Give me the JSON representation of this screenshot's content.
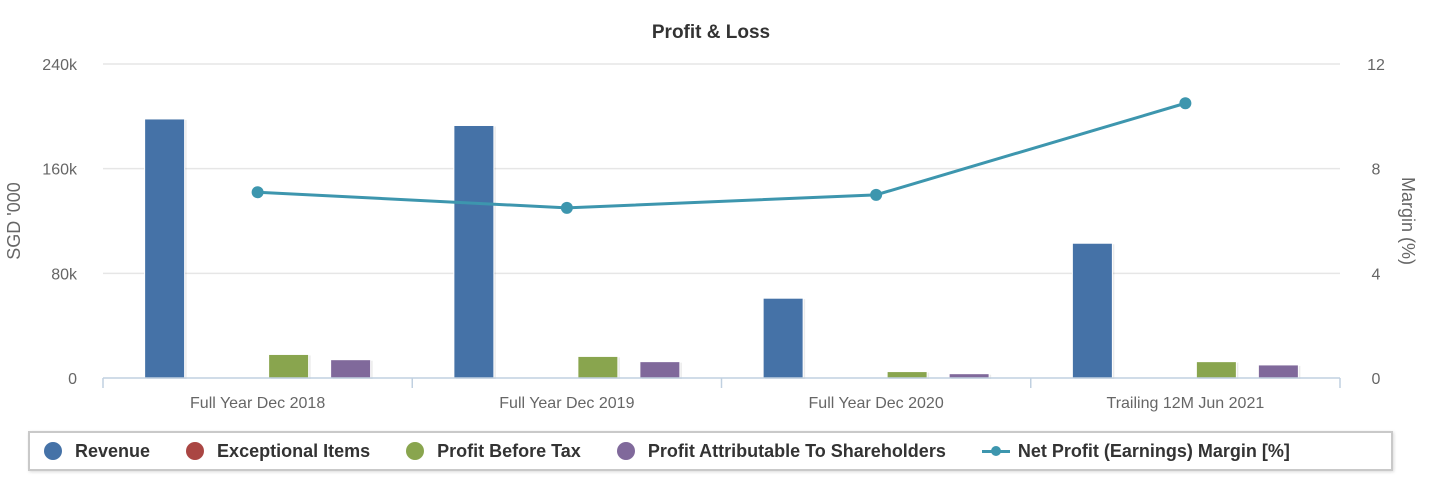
{
  "chart_data": {
    "type": "bar",
    "title": "Profit & Loss",
    "categories": [
      "Full Year Dec 2018",
      "Full Year Dec 2019",
      "Full Year Dec 2020",
      "Trailing 12M Jun 2021"
    ],
    "ylabel": "SGD '000",
    "ylabel_right": "Margin (%)",
    "ylim": [
      0,
      240000
    ],
    "ylim_right": [
      0,
      12
    ],
    "yticks": [
      "0",
      "80k",
      "160k",
      "240k"
    ],
    "yticks_right": [
      "0",
      "4",
      "8",
      "12"
    ],
    "grid": true,
    "legend_position": "bottom",
    "series": [
      {
        "name": "Revenue",
        "type": "bar",
        "axis": "left",
        "color": "#4572a7",
        "values": [
          198000,
          193000,
          61000,
          103000
        ]
      },
      {
        "name": "Exceptional Items",
        "type": "bar",
        "axis": "left",
        "color": "#aa4643",
        "values": [
          0,
          0,
          0,
          0
        ]
      },
      {
        "name": "Profit Before Tax",
        "type": "bar",
        "axis": "left",
        "color": "#89a54e",
        "values": [
          18000,
          16500,
          4900,
          12500
        ]
      },
      {
        "name": "Profit Attributable To Shareholders",
        "type": "bar",
        "axis": "left",
        "color": "#80699b",
        "values": [
          14000,
          12500,
          3300,
          10000
        ]
      },
      {
        "name": "Net Profit (Earnings) Margin [%]",
        "type": "line",
        "axis": "right",
        "color": "#3d96ae",
        "values": [
          7.1,
          6.5,
          7.0,
          10.5
        ]
      }
    ]
  }
}
